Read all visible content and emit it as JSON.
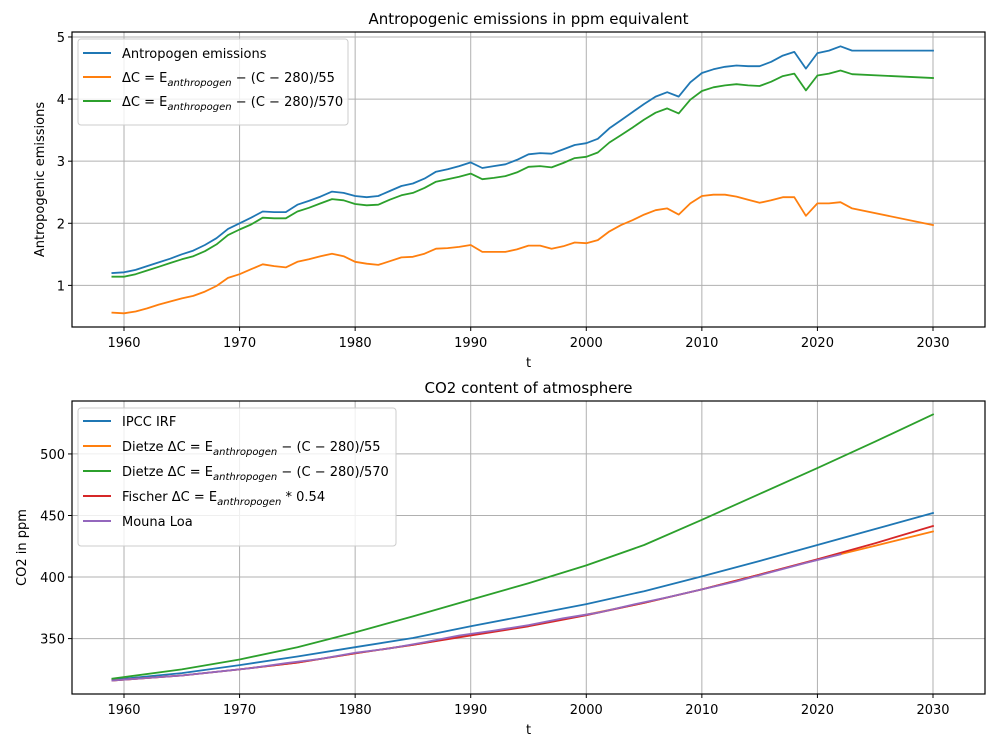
{
  "chart_data": [
    {
      "type": "line",
      "title": "Antropogenic emissions in ppm equivalent",
      "xlabel": "t",
      "ylabel": "Antropogenic emissions",
      "xlim": [
        1955.5,
        2034.5
      ],
      "ylim": [
        0.33,
        5.08
      ],
      "xticks": [
        1960,
        1970,
        1980,
        1990,
        2000,
        2010,
        2020,
        2030
      ],
      "yticks": [
        1,
        2,
        3,
        4,
        5
      ],
      "grid": true,
      "legend_position": "top-left",
      "x": [
        1959,
        1960,
        1961,
        1962,
        1963,
        1964,
        1965,
        1966,
        1967,
        1968,
        1969,
        1970,
        1971,
        1972,
        1973,
        1974,
        1975,
        1976,
        1977,
        1978,
        1979,
        1980,
        1981,
        1982,
        1983,
        1984,
        1985,
        1986,
        1987,
        1988,
        1989,
        1990,
        1991,
        1992,
        1993,
        1994,
        1995,
        1996,
        1997,
        1998,
        1999,
        2000,
        2001,
        2002,
        2003,
        2004,
        2005,
        2006,
        2007,
        2008,
        2009,
        2010,
        2011,
        2012,
        2013,
        2014,
        2015,
        2016,
        2017,
        2018,
        2019,
        2020,
        2021,
        2022,
        2023,
        2030
      ],
      "series": [
        {
          "name": "Antropogen emissions",
          "legend": {
            "plain": "Antropogen emissions"
          },
          "color": "#1f77b4",
          "values": [
            1.2,
            1.21,
            1.25,
            1.31,
            1.37,
            1.43,
            1.5,
            1.56,
            1.65,
            1.76,
            1.91,
            2.0,
            2.09,
            2.19,
            2.18,
            2.18,
            2.3,
            2.36,
            2.43,
            2.51,
            2.49,
            2.44,
            2.42,
            2.44,
            2.52,
            2.6,
            2.64,
            2.72,
            2.83,
            2.87,
            2.92,
            2.98,
            2.89,
            2.92,
            2.95,
            3.02,
            3.11,
            3.13,
            3.12,
            3.19,
            3.26,
            3.29,
            3.36,
            3.53,
            3.66,
            3.79,
            3.92,
            4.04,
            4.11,
            4.04,
            4.27,
            4.42,
            4.48,
            4.52,
            4.54,
            4.53,
            4.53,
            4.6,
            4.7,
            4.76,
            4.49,
            4.74,
            4.78,
            4.85,
            4.78,
            4.78
          ]
        },
        {
          "name": "ΔC = E_anthropogen − (C − 280)/55",
          "legend": {
            "prefix": "ΔC = E",
            "sub": "anthropogen",
            "suffix": " − (C − 280)/55"
          },
          "color": "#ff7f0e",
          "values": [
            0.56,
            0.55,
            0.58,
            0.63,
            0.69,
            0.74,
            0.79,
            0.83,
            0.9,
            0.99,
            1.12,
            1.18,
            1.26,
            1.34,
            1.31,
            1.29,
            1.38,
            1.42,
            1.47,
            1.51,
            1.47,
            1.38,
            1.35,
            1.33,
            1.39,
            1.45,
            1.46,
            1.51,
            1.59,
            1.6,
            1.62,
            1.65,
            1.54,
            1.54,
            1.54,
            1.58,
            1.64,
            1.64,
            1.59,
            1.63,
            1.69,
            1.68,
            1.73,
            1.87,
            1.97,
            2.05,
            2.14,
            2.21,
            2.24,
            2.14,
            2.32,
            2.44,
            2.46,
            2.46,
            2.43,
            2.38,
            2.33,
            2.37,
            2.42,
            2.42,
            2.12,
            2.32,
            2.32,
            2.34,
            2.24,
            1.97
          ]
        },
        {
          "name": "ΔC = E_anthropogen − (C − 280)/570",
          "legend": {
            "prefix": "ΔC = E",
            "sub": "anthropogen",
            "suffix": " − (C − 280)/570"
          },
          "color": "#2ca02c",
          "values": [
            1.14,
            1.14,
            1.18,
            1.24,
            1.3,
            1.36,
            1.42,
            1.47,
            1.55,
            1.66,
            1.81,
            1.9,
            1.98,
            2.09,
            2.08,
            2.08,
            2.19,
            2.25,
            2.32,
            2.39,
            2.37,
            2.31,
            2.29,
            2.3,
            2.38,
            2.45,
            2.49,
            2.57,
            2.67,
            2.71,
            2.75,
            2.8,
            2.71,
            2.73,
            2.76,
            2.82,
            2.91,
            2.92,
            2.9,
            2.97,
            3.05,
            3.07,
            3.14,
            3.3,
            3.42,
            3.54,
            3.67,
            3.78,
            3.85,
            3.77,
            3.99,
            4.13,
            4.19,
            4.22,
            4.24,
            4.22,
            4.21,
            4.28,
            4.37,
            4.41,
            4.14,
            4.38,
            4.41,
            4.46,
            4.4,
            4.34
          ]
        }
      ]
    },
    {
      "type": "line",
      "title": "CO2 content of atmosphere",
      "xlabel": "t",
      "ylabel": "CO2 in ppm",
      "xlim": [
        1955.5,
        2034.5
      ],
      "ylim": [
        305,
        543
      ],
      "xticks": [
        1960,
        1970,
        1980,
        1990,
        2000,
        2010,
        2020,
        2030
      ],
      "yticks": [
        350,
        400,
        450,
        500
      ],
      "grid": true,
      "legend_position": "top-left",
      "x": [
        1959,
        1965,
        1970,
        1975,
        1980,
        1985,
        1990,
        1995,
        2000,
        2005,
        2010,
        2015,
        2020,
        2025,
        2030
      ],
      "series": [
        {
          "name": "IPCC IRF",
          "legend": {
            "plain": "IPCC IRF"
          },
          "color": "#1f77b4",
          "values": [
            316.5,
            322,
            328.5,
            335.5,
            343,
            350.5,
            360,
            369,
            378,
            388.5,
            400.5,
            413,
            426,
            439,
            452
          ]
        },
        {
          "name": "Dietze ΔC = E_anthropogen − (C − 280)/55",
          "legend": {
            "prefix": "Dietze ΔC = E",
            "sub": "anthropogen",
            "suffix": " − (C − 280)/55"
          },
          "color": "#ff7f0e",
          "values": [
            316,
            320,
            325,
            330.5,
            338,
            345,
            353,
            360.5,
            369.5,
            379,
            390,
            402,
            414,
            425.5,
            437
          ]
        },
        {
          "name": "Dietze ΔC = E_anthropogen − (C − 280)/570",
          "legend": {
            "prefix": "Dietze ΔC = E",
            "sub": "anthropogen",
            "suffix": " − (C − 280)/570"
          },
          "color": "#2ca02c",
          "values": [
            317.5,
            325,
            333,
            343,
            355,
            368,
            381.5,
            395,
            409.5,
            426,
            446.5,
            467.5,
            488.5,
            510,
            532
          ]
        },
        {
          "name": "Fischer ΔC = E_anthropogen * 0.54",
          "legend": {
            "prefix": "Fischer ΔC = E",
            "sub": "anthropogen",
            "suffix": " * 0.54"
          },
          "color": "#d62728",
          "values": [
            316,
            320,
            325,
            330.5,
            338,
            345,
            352.5,
            360,
            369,
            379,
            390,
            402,
            414.5,
            427.5,
            441.5
          ]
        },
        {
          "name": "Mouna Loa",
          "legend": {
            "plain": "Mouna Loa"
          },
          "color": "#9467bd",
          "x": [
            1959,
            1962,
            1965,
            1968,
            1971,
            1974,
            1977,
            1980,
            1983,
            1986,
            1989,
            1992,
            1995,
            1998,
            2001,
            2004,
            2007,
            2010,
            2013,
            2016,
            2019,
            2022
          ],
          "values": [
            316,
            318,
            320,
            323,
            326,
            330,
            333.5,
            338.5,
            342,
            347,
            352.5,
            356.5,
            361,
            366.5,
            371,
            377.5,
            383.5,
            390,
            396.5,
            404,
            411.5,
            418.5
          ]
        }
      ]
    }
  ]
}
